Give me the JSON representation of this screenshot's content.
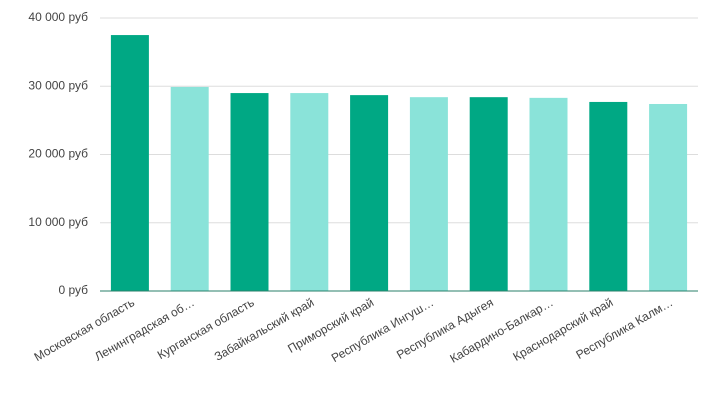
{
  "chart_data": {
    "type": "bar",
    "categories": [
      "Московская область",
      "Ленинградская об…",
      "Курганская область",
      "Забайкальский край",
      "Приморский край",
      "Республика Ингуш…",
      "Республика Адыгея",
      "Кабардино-Балкар…",
      "Краснодарский край",
      "Республика Калм…"
    ],
    "values": [
      37500,
      29900,
      29000,
      29000,
      28700,
      28400,
      28400,
      28300,
      27700,
      27400
    ],
    "colors": [
      "#00a884",
      "#8ae3d9",
      "#00a884",
      "#8ae3d9",
      "#00a884",
      "#8ae3d9",
      "#00a884",
      "#8ae3d9",
      "#00a884",
      "#8ae3d9"
    ],
    "ylim": [
      0,
      40000
    ],
    "yticks": [
      {
        "value": 0,
        "label": "0 руб"
      },
      {
        "value": 10000,
        "label": "10 000 руб"
      },
      {
        "value": 20000,
        "label": "20 000 руб"
      },
      {
        "value": 30000,
        "label": "30 000 руб"
      },
      {
        "value": 40000,
        "label": "40 000 руб"
      }
    ],
    "grid": true
  }
}
